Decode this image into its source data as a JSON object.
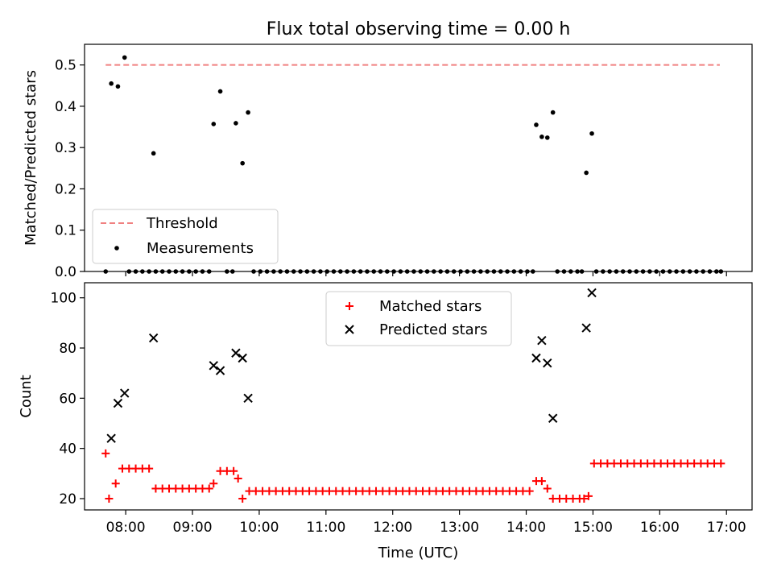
{
  "chart_data": [
    {
      "type": "scatter",
      "title": "Flux total observing time = 0.00 h",
      "xlabel": "",
      "ylabel": "Matched/Predicted stars",
      "xlim": [
        "07:23",
        "17:23"
      ],
      "ylim": [
        0,
        0.55
      ],
      "yticks": [
        "0.0",
        "0.1",
        "0.2",
        "0.3",
        "0.4",
        "0.5"
      ],
      "legend": "lower-left",
      "threshold": {
        "name": "Threshold",
        "value": 0.5,
        "x_range": [
          "07:42",
          "16:54"
        ],
        "color": "#f08080",
        "style": "dashed"
      },
      "series": [
        {
          "name": "Measurements",
          "color": "#000000",
          "points": [
            [
              "07:42",
              0.0
            ],
            [
              "07:47",
              0.455
            ],
            [
              "07:53",
              0.448
            ],
            [
              "07:59",
              0.518
            ],
            [
              "08:03",
              0.0
            ],
            [
              "08:09",
              0.0
            ],
            [
              "08:15",
              0.0
            ],
            [
              "08:21",
              0.0
            ],
            [
              "08:27",
              0.0
            ],
            [
              "08:25",
              0.286
            ],
            [
              "08:33",
              0.0
            ],
            [
              "08:39",
              0.0
            ],
            [
              "08:45",
              0.0
            ],
            [
              "08:51",
              0.0
            ],
            [
              "08:57",
              0.0
            ],
            [
              "09:03",
              0.0
            ],
            [
              "09:09",
              0.0
            ],
            [
              "09:15",
              0.0
            ],
            [
              "09:19",
              0.357
            ],
            [
              "09:25",
              0.436
            ],
            [
              "09:31",
              0.0
            ],
            [
              "09:36",
              0.0
            ],
            [
              "09:39",
              0.359
            ],
            [
              "09:45",
              0.262
            ],
            [
              "09:50",
              0.385
            ],
            [
              "09:55",
              0.0
            ],
            [
              "10:01",
              0.0
            ],
            [
              "10:07",
              0.0
            ],
            [
              "10:13",
              0.0
            ],
            [
              "10:19",
              0.0
            ],
            [
              "10:25",
              0.0
            ],
            [
              "10:31",
              0.0
            ],
            [
              "10:37",
              0.0
            ],
            [
              "10:43",
              0.0
            ],
            [
              "10:49",
              0.0
            ],
            [
              "10:55",
              0.0
            ],
            [
              "11:01",
              0.0
            ],
            [
              "11:07",
              0.0
            ],
            [
              "11:13",
              0.0
            ],
            [
              "11:19",
              0.0
            ],
            [
              "11:25",
              0.0
            ],
            [
              "11:31",
              0.0
            ],
            [
              "11:37",
              0.0
            ],
            [
              "11:43",
              0.0
            ],
            [
              "11:49",
              0.0
            ],
            [
              "11:55",
              0.0
            ],
            [
              "12:01",
              0.0
            ],
            [
              "12:07",
              0.0
            ],
            [
              "12:13",
              0.0
            ],
            [
              "12:19",
              0.0
            ],
            [
              "12:25",
              0.0
            ],
            [
              "12:31",
              0.0
            ],
            [
              "12:37",
              0.0
            ],
            [
              "12:43",
              0.0
            ],
            [
              "12:49",
              0.0
            ],
            [
              "12:55",
              0.0
            ],
            [
              "13:01",
              0.0
            ],
            [
              "13:07",
              0.0
            ],
            [
              "13:13",
              0.0
            ],
            [
              "13:19",
              0.0
            ],
            [
              "13:25",
              0.0
            ],
            [
              "13:31",
              0.0
            ],
            [
              "13:37",
              0.0
            ],
            [
              "13:43",
              0.0
            ],
            [
              "13:49",
              0.0
            ],
            [
              "13:55",
              0.0
            ],
            [
              "14:01",
              0.0
            ],
            [
              "14:06",
              0.0
            ],
            [
              "14:09",
              0.355
            ],
            [
              "14:14",
              0.326
            ],
            [
              "14:19",
              0.324
            ],
            [
              "14:24",
              0.385
            ],
            [
              "14:28",
              0.0
            ],
            [
              "14:34",
              0.0
            ],
            [
              "14:40",
              0.0
            ],
            [
              "14:46",
              0.0
            ],
            [
              "14:50",
              0.0
            ],
            [
              "14:54",
              0.239
            ],
            [
              "14:59",
              0.334
            ],
            [
              "15:03",
              0.0
            ],
            [
              "15:09",
              0.0
            ],
            [
              "15:15",
              0.0
            ],
            [
              "15:21",
              0.0
            ],
            [
              "15:27",
              0.0
            ],
            [
              "15:33",
              0.0
            ],
            [
              "15:39",
              0.0
            ],
            [
              "15:45",
              0.0
            ],
            [
              "15:51",
              0.0
            ],
            [
              "15:57",
              0.0
            ],
            [
              "16:03",
              0.0
            ],
            [
              "16:09",
              0.0
            ],
            [
              "16:15",
              0.0
            ],
            [
              "16:21",
              0.0
            ],
            [
              "16:27",
              0.0
            ],
            [
              "16:33",
              0.0
            ],
            [
              "16:39",
              0.0
            ],
            [
              "16:45",
              0.0
            ],
            [
              "16:51",
              0.0
            ],
            [
              "16:55",
              0.0
            ]
          ]
        }
      ]
    },
    {
      "type": "scatter",
      "title": "",
      "xlabel": "Time (UTC)",
      "ylabel": "Count",
      "xlim": [
        "07:23",
        "17:23"
      ],
      "ylim": [
        15.5,
        106
      ],
      "xticks": [
        "08:00",
        "09:00",
        "10:00",
        "11:00",
        "12:00",
        "13:00",
        "14:00",
        "15:00",
        "16:00",
        "17:00"
      ],
      "yticks": [
        "20",
        "40",
        "60",
        "80",
        "100"
      ],
      "legend": "upper-center",
      "series": [
        {
          "name": "Matched stars",
          "marker": "plus",
          "color": "#ff0000",
          "points": [
            [
              "07:42",
              38
            ],
            [
              "07:45",
              20
            ],
            [
              "07:51",
              26
            ],
            [
              "07:57",
              32
            ],
            [
              "08:03",
              32
            ],
            [
              "08:09",
              32
            ],
            [
              "08:15",
              32
            ],
            [
              "08:21",
              32
            ],
            [
              "08:27",
              24
            ],
            [
              "08:33",
              24
            ],
            [
              "08:39",
              24
            ],
            [
              "08:45",
              24
            ],
            [
              "08:51",
              24
            ],
            [
              "08:57",
              24
            ],
            [
              "09:03",
              24
            ],
            [
              "09:09",
              24
            ],
            [
              "09:15",
              24
            ],
            [
              "09:19",
              26
            ],
            [
              "09:25",
              31
            ],
            [
              "09:31",
              31
            ],
            [
              "09:37",
              31
            ],
            [
              "09:41",
              28
            ],
            [
              "09:45",
              20
            ],
            [
              "09:51",
              23
            ],
            [
              "09:57",
              23
            ],
            [
              "10:03",
              23
            ],
            [
              "10:09",
              23
            ],
            [
              "10:15",
              23
            ],
            [
              "10:21",
              23
            ],
            [
              "10:27",
              23
            ],
            [
              "10:33",
              23
            ],
            [
              "10:39",
              23
            ],
            [
              "10:45",
              23
            ],
            [
              "10:51",
              23
            ],
            [
              "10:57",
              23
            ],
            [
              "11:03",
              23
            ],
            [
              "11:09",
              23
            ],
            [
              "11:15",
              23
            ],
            [
              "11:21",
              23
            ],
            [
              "11:27",
              23
            ],
            [
              "11:33",
              23
            ],
            [
              "11:39",
              23
            ],
            [
              "11:45",
              23
            ],
            [
              "11:51",
              23
            ],
            [
              "11:57",
              23
            ],
            [
              "12:03",
              23
            ],
            [
              "12:09",
              23
            ],
            [
              "12:15",
              23
            ],
            [
              "12:21",
              23
            ],
            [
              "12:27",
              23
            ],
            [
              "12:33",
              23
            ],
            [
              "12:39",
              23
            ],
            [
              "12:45",
              23
            ],
            [
              "12:51",
              23
            ],
            [
              "12:57",
              23
            ],
            [
              "13:03",
              23
            ],
            [
              "13:09",
              23
            ],
            [
              "13:15",
              23
            ],
            [
              "13:21",
              23
            ],
            [
              "13:27",
              23
            ],
            [
              "13:33",
              23
            ],
            [
              "13:39",
              23
            ],
            [
              "13:45",
              23
            ],
            [
              "13:51",
              23
            ],
            [
              "13:57",
              23
            ],
            [
              "14:03",
              23
            ],
            [
              "14:09",
              27
            ],
            [
              "14:14",
              27
            ],
            [
              "14:19",
              24
            ],
            [
              "14:24",
              20
            ],
            [
              "14:30",
              20
            ],
            [
              "14:36",
              20
            ],
            [
              "14:42",
              20
            ],
            [
              "14:48",
              20
            ],
            [
              "14:52",
              20
            ],
            [
              "14:56",
              21
            ],
            [
              "15:01",
              34
            ],
            [
              "15:07",
              34
            ],
            [
              "15:13",
              34
            ],
            [
              "15:19",
              34
            ],
            [
              "15:25",
              34
            ],
            [
              "15:31",
              34
            ],
            [
              "15:37",
              34
            ],
            [
              "15:43",
              34
            ],
            [
              "15:49",
              34
            ],
            [
              "15:55",
              34
            ],
            [
              "16:01",
              34
            ],
            [
              "16:07",
              34
            ],
            [
              "16:13",
              34
            ],
            [
              "16:19",
              34
            ],
            [
              "16:25",
              34
            ],
            [
              "16:31",
              34
            ],
            [
              "16:37",
              34
            ],
            [
              "16:43",
              34
            ],
            [
              "16:49",
              34
            ],
            [
              "16:55",
              34
            ]
          ]
        },
        {
          "name": "Predicted stars",
          "marker": "x",
          "color": "#000000",
          "points": [
            [
              "07:47",
              44
            ],
            [
              "07:53",
              58
            ],
            [
              "07:59",
              62
            ],
            [
              "08:25",
              84
            ],
            [
              "09:19",
              73
            ],
            [
              "09:25",
              71
            ],
            [
              "09:39",
              78
            ],
            [
              "09:45",
              76
            ],
            [
              "09:50",
              60
            ],
            [
              "14:09",
              76
            ],
            [
              "14:14",
              83
            ],
            [
              "14:19",
              74
            ],
            [
              "14:24",
              52
            ],
            [
              "14:54",
              88
            ],
            [
              "14:59",
              102
            ]
          ]
        }
      ]
    }
  ]
}
